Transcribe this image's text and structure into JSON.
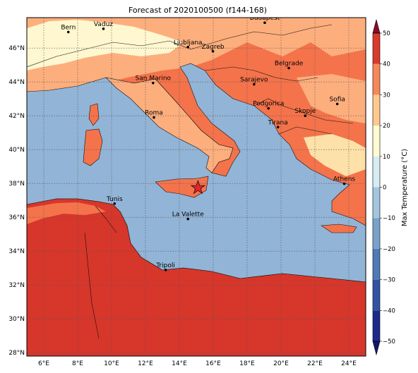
{
  "title": "Forecast of 2020100500 (f144-168)",
  "lon_ticks": [
    "6°E",
    "8°E",
    "10°E",
    "12°E",
    "14°E",
    "16°E",
    "18°E",
    "20°E",
    "22°E",
    "24°E"
  ],
  "lat_ticks": [
    "28°N",
    "30°N",
    "32°N",
    "34°N",
    "36°N",
    "38°N",
    "40°N",
    "42°N",
    "44°N",
    "46°N"
  ],
  "cities": [
    {
      "name": "Bern",
      "lon": 7.45,
      "lat": 46.95
    },
    {
      "name": "Vaduz",
      "lon": 9.52,
      "lat": 47.14
    },
    {
      "name": "Budapest",
      "lon": 19.04,
      "lat": 47.5
    },
    {
      "name": "Ljubljana",
      "lon": 14.51,
      "lat": 46.06
    },
    {
      "name": "Zagreb",
      "lon": 15.98,
      "lat": 45.81
    },
    {
      "name": "Belgrade",
      "lon": 20.46,
      "lat": 44.82
    },
    {
      "name": "San Marino",
      "lon": 12.45,
      "lat": 43.94
    },
    {
      "name": "Sarajevo",
      "lon": 18.41,
      "lat": 43.86
    },
    {
      "name": "Sofia",
      "lon": 23.32,
      "lat": 42.7
    },
    {
      "name": "Podgorica",
      "lon": 19.26,
      "lat": 42.44
    },
    {
      "name": "Skopje",
      "lon": 21.43,
      "lat": 42.0
    },
    {
      "name": "Roma",
      "lon": 12.5,
      "lat": 41.9
    },
    {
      "name": "Tirana",
      "lon": 19.82,
      "lat": 41.33
    },
    {
      "name": "Athens",
      "lon": 23.73,
      "lat": 37.98
    },
    {
      "name": "Tunis",
      "lon": 10.18,
      "lat": 36.81
    },
    {
      "name": "La Valette",
      "lon": 14.51,
      "lat": 35.9
    },
    {
      "name": "Tripoli",
      "lon": 13.19,
      "lat": 32.89
    }
  ],
  "star": {
    "lon": 15.1,
    "lat": 37.75
  },
  "colorbar": {
    "label": "Max Temperature (°C)",
    "tick_labels": [
      "−50",
      "−40",
      "−30",
      "−20",
      "−10",
      "0",
      "10",
      "20",
      "30",
      "40",
      "50"
    ],
    "colors": [
      "#1c2a8c",
      "#3253a4",
      "#4e7ab6",
      "#78a2cc",
      "#a3c6e0",
      "#d7ecf3",
      "#fefbd0",
      "#fdc98f",
      "#f6895a",
      "#d93a2c",
      "#8c0b23"
    ]
  },
  "map_colors": {
    "sea": "#92b4d6",
    "cold": "#fef7cf",
    "mild": "#fdae7d",
    "warm": "#f4734b",
    "hot": "#d7362b",
    "pale": "#fde1a8"
  }
}
